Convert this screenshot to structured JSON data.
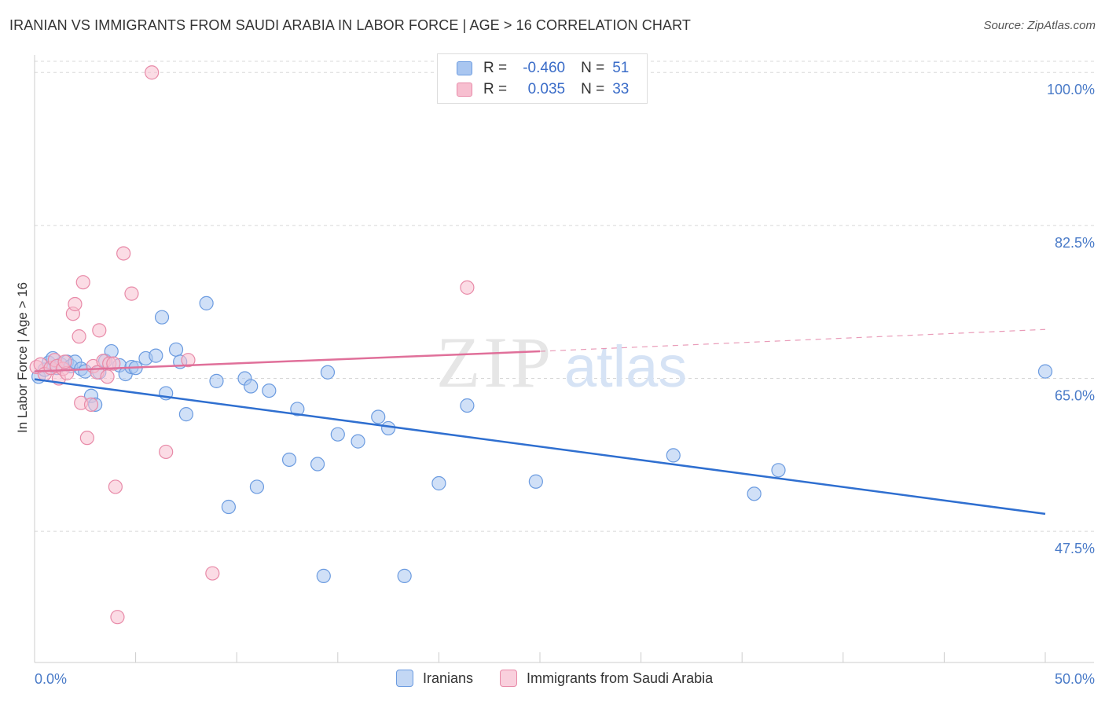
{
  "title": "IRANIAN VS IMMIGRANTS FROM SAUDI ARABIA IN LABOR FORCE | AGE > 16 CORRELATION CHART",
  "source": "Source: ZipAtlas.com",
  "watermark": {
    "zip": "ZIP",
    "atlas": "atlas"
  },
  "legend_top": {
    "rows": [
      {
        "r_label": "R =",
        "r_value": "-0.460",
        "n_label": "N =",
        "n_value": "51",
        "color": "#a9c6f0",
        "border": "#6b9be0"
      },
      {
        "r_label": "R =",
        "r_value": "0.035",
        "n_label": "N =",
        "n_value": "33",
        "color": "#f7bfd0",
        "border": "#e88aa8"
      }
    ]
  },
  "legend_bottom": {
    "items": [
      {
        "label": "Iranians",
        "color": "#a9c6f0",
        "border": "#6b9be0"
      },
      {
        "label": "Immigrants from Saudi Arabia",
        "color": "#f7bfd0",
        "border": "#e88aa8"
      }
    ]
  },
  "chart_data": {
    "type": "scatter",
    "title": "IRANIAN VS IMMIGRANTS FROM SAUDI ARABIA IN LABOR FORCE | AGE > 16 CORRELATION CHART",
    "xlabel": "",
    "ylabel": "In Labor Force | Age > 16",
    "xlim": [
      0,
      50
    ],
    "ylim": [
      32.5,
      102.0
    ],
    "x_tick_labels": [
      "0.0%",
      "50.0%"
    ],
    "y_ticks": [
      47.5,
      65.0,
      82.5,
      100.0
    ],
    "y_tick_labels": [
      "47.5%",
      "65.0%",
      "82.5%",
      "100.0%"
    ],
    "grid": true,
    "legend_position": "top-center",
    "series": [
      {
        "name": "Iranians",
        "color": "#6b9be0",
        "fill": "#a9c6f0",
        "line_color": "#2f6fd0",
        "points": [
          [
            0.2,
            65.2
          ],
          [
            0.5,
            66.0
          ],
          [
            0.7,
            66.8
          ],
          [
            0.9,
            67.3
          ],
          [
            1.1,
            66.2
          ],
          [
            1.3,
            66.6
          ],
          [
            1.6,
            66.9
          ],
          [
            1.8,
            66.4
          ],
          [
            2.0,
            66.9
          ],
          [
            2.3,
            66.1
          ],
          [
            2.5,
            65.8
          ],
          [
            2.8,
            63.0
          ],
          [
            3.0,
            62.0
          ],
          [
            3.2,
            65.7
          ],
          [
            3.5,
            67.0
          ],
          [
            3.8,
            68.1
          ],
          [
            4.2,
            66.5
          ],
          [
            4.5,
            65.5
          ],
          [
            4.8,
            66.3
          ],
          [
            5.0,
            66.2
          ],
          [
            5.5,
            67.3
          ],
          [
            6.0,
            67.6
          ],
          [
            6.3,
            72.0
          ],
          [
            6.5,
            63.3
          ],
          [
            7.0,
            68.3
          ],
          [
            7.2,
            66.9
          ],
          [
            7.5,
            60.9
          ],
          [
            8.5,
            73.6
          ],
          [
            9.0,
            64.7
          ],
          [
            9.6,
            50.3
          ],
          [
            10.4,
            65.0
          ],
          [
            10.7,
            64.1
          ],
          [
            11.0,
            52.6
          ],
          [
            11.6,
            63.6
          ],
          [
            12.6,
            55.7
          ],
          [
            13.0,
            61.5
          ],
          [
            14.0,
            55.2
          ],
          [
            14.3,
            42.4
          ],
          [
            14.5,
            65.7
          ],
          [
            15.0,
            58.6
          ],
          [
            16.0,
            57.8
          ],
          [
            17.0,
            60.6
          ],
          [
            17.5,
            59.3
          ],
          [
            18.3,
            42.4
          ],
          [
            20.0,
            53.0
          ],
          [
            21.4,
            61.9
          ],
          [
            24.8,
            53.2
          ],
          [
            31.6,
            56.2
          ],
          [
            35.6,
            51.8
          ],
          [
            36.8,
            54.5
          ],
          [
            50.0,
            65.8
          ]
        ],
        "trend": {
          "x": [
            0,
            50
          ],
          "y": [
            64.9,
            49.5
          ]
        }
      },
      {
        "name": "Immigrants from Saudi Arabia",
        "color": "#e88aa8",
        "fill": "#f7bfd0",
        "line_color": "#e0709a",
        "points": [
          [
            0.1,
            66.3
          ],
          [
            0.3,
            66.6
          ],
          [
            0.5,
            65.5
          ],
          [
            0.8,
            66.2
          ],
          [
            1.0,
            67.1
          ],
          [
            1.1,
            66.4
          ],
          [
            1.2,
            65.0
          ],
          [
            1.4,
            66.1
          ],
          [
            1.6,
            65.6
          ],
          [
            1.9,
            72.4
          ],
          [
            2.0,
            73.5
          ],
          [
            2.2,
            69.8
          ],
          [
            2.3,
            62.2
          ],
          [
            2.4,
            76.0
          ],
          [
            2.6,
            58.2
          ],
          [
            2.8,
            62.0
          ],
          [
            2.9,
            66.4
          ],
          [
            3.1,
            65.7
          ],
          [
            3.2,
            70.5
          ],
          [
            3.4,
            67.0
          ],
          [
            3.6,
            65.2
          ],
          [
            3.7,
            66.7
          ],
          [
            3.9,
            66.7
          ],
          [
            4.0,
            52.6
          ],
          [
            4.1,
            37.7
          ],
          [
            4.4,
            79.3
          ],
          [
            4.8,
            74.7
          ],
          [
            5.8,
            100.0
          ],
          [
            6.5,
            56.6
          ],
          [
            7.6,
            67.1
          ],
          [
            8.8,
            42.7
          ],
          [
            21.4,
            75.4
          ],
          [
            1.5,
            66.9
          ]
        ],
        "trend": {
          "x": [
            0,
            25
          ],
          "y": [
            65.8,
            68.1
          ]
        },
        "trend_extension": {
          "x": [
            25,
            50
          ],
          "y": [
            68.1,
            70.6
          ]
        }
      }
    ]
  }
}
